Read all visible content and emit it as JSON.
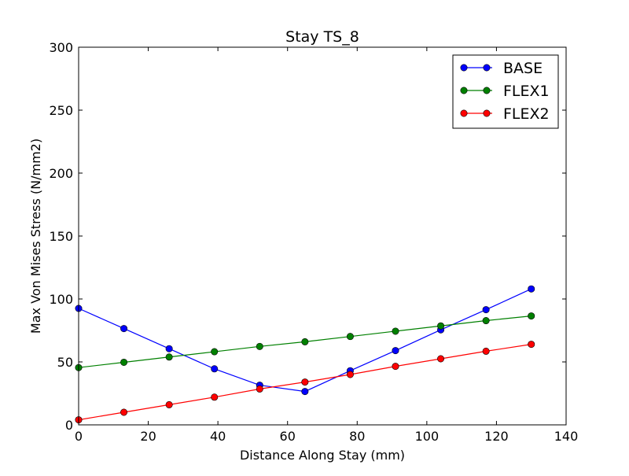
{
  "chart_data": {
    "type": "line",
    "title": "Stay TS_8",
    "xlabel": "Distance Along Stay (mm)",
    "ylabel": "Max Von Mises Stress (N/mm2)",
    "xlim": [
      0,
      140
    ],
    "ylim": [
      0,
      300
    ],
    "xticks": [
      0,
      20,
      40,
      60,
      80,
      100,
      120,
      140
    ],
    "yticks": [
      0,
      50,
      100,
      150,
      200,
      250,
      300
    ],
    "grid": false,
    "legend_position": "top-right",
    "x": [
      0,
      13,
      26,
      39,
      52,
      65,
      78,
      91,
      104,
      117,
      130
    ],
    "series": [
      {
        "name": "BASE",
        "color": "#0000ff",
        "values": [
          92.5,
          76.5,
          60.5,
          44.5,
          31.5,
          26.5,
          43,
          59,
          75.5,
          91.5,
          108
        ]
      },
      {
        "name": "FLEX1",
        "color": "#008000",
        "values": [
          45.5,
          49.7,
          53.9,
          58.1,
          62.3,
          66,
          70.2,
          74.4,
          78.6,
          82.8,
          86.5
        ]
      },
      {
        "name": "FLEX2",
        "color": "#ff0000",
        "values": [
          4,
          10,
          16,
          22,
          28.5,
          34,
          40,
          46.5,
          52.5,
          58.5,
          64
        ]
      }
    ]
  }
}
